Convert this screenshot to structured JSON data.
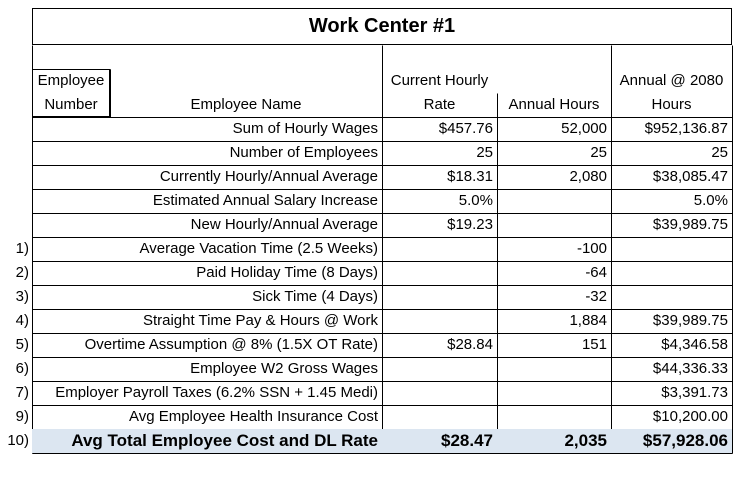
{
  "title": "Work Center #1",
  "headers": {
    "employee_number": [
      "Employee",
      "Number"
    ],
    "employee_name": "Employee Name",
    "hourly_rate": [
      "Current Hourly",
      "Rate"
    ],
    "annual_hours": "Annual Hours",
    "annual_2080": [
      "Annual @ 2080",
      "Hours"
    ]
  },
  "rows": [
    {
      "num": "",
      "label": "Sum of Hourly Wages",
      "rate": "$457.76",
      "hours": "52,000",
      "annual": "$952,136.87"
    },
    {
      "num": "",
      "label": "Number of Employees",
      "rate": "25",
      "hours": "25",
      "annual": "25"
    },
    {
      "num": "",
      "label": "Currently Hourly/Annual Average",
      "rate": "$18.31",
      "hours": "2,080",
      "annual": "$38,085.47"
    },
    {
      "num": "",
      "label": "Estimated Annual Salary Increase",
      "rate": "5.0%",
      "hours": "",
      "annual": "5.0%"
    },
    {
      "num": "",
      "label": "New Hourly/Annual Average",
      "rate": "$19.23",
      "hours": "",
      "annual": "$39,989.75"
    },
    {
      "num": "1)",
      "label": "Average Vacation Time (2.5 Weeks)",
      "rate": "",
      "hours": "-100",
      "annual": ""
    },
    {
      "num": "2)",
      "label": "Paid Holiday Time (8 Days)",
      "rate": "",
      "hours": "-64",
      "annual": ""
    },
    {
      "num": "3)",
      "label": "Sick Time (4 Days)",
      "rate": "",
      "hours": "-32",
      "annual": ""
    },
    {
      "num": "4)",
      "label": "Straight Time Pay & Hours @ Work",
      "rate": "",
      "hours": "1,884",
      "annual": "$39,989.75"
    },
    {
      "num": "5)",
      "label": "Overtime Assumption @ 8% (1.5X OT Rate)",
      "rate": "$28.84",
      "hours": "151",
      "annual": "$4,346.58"
    },
    {
      "num": "6)",
      "label": "Employee W2 Gross Wages",
      "rate": "",
      "hours": "",
      "annual": "$44,336.33"
    },
    {
      "num": "7)",
      "label": "Employer Payroll Taxes (6.2% SSN + 1.45 Medi)",
      "rate": "",
      "hours": "",
      "annual": "$3,391.73"
    },
    {
      "num": "9)",
      "label": "Avg Employee Health Insurance Cost",
      "rate": "",
      "hours": "",
      "annual": "$10,200.00"
    },
    {
      "num": "10)",
      "label": "Avg Total Employee Cost and DL Rate",
      "rate": "$28.47",
      "hours": "2,035",
      "annual": "$57,928.06"
    }
  ]
}
